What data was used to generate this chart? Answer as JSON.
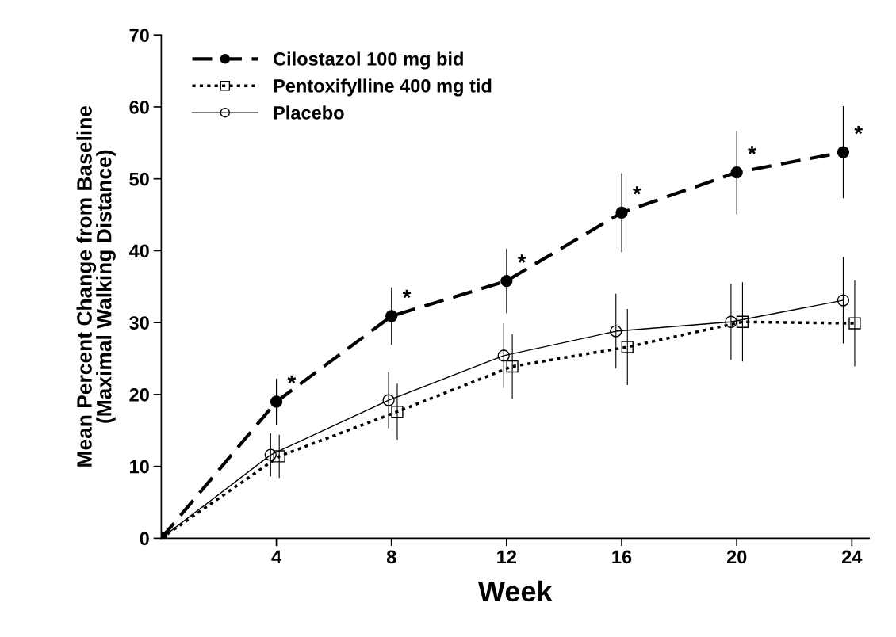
{
  "chart_data": {
    "type": "line",
    "xlabel": "Week",
    "ylabel": "Mean Percent Change from Baseline\n(Maximal Walking Distance)",
    "xlim": [
      0,
      24.6
    ],
    "xticks": [
      4,
      8,
      12,
      16,
      20,
      24
    ],
    "ylim": [
      0,
      70
    ],
    "yticks": [
      0,
      10,
      20,
      30,
      40,
      50,
      60,
      70
    ],
    "grid": false,
    "legend": "top left",
    "series": [
      {
        "name": "Cilostazol 100 mg bid",
        "color": "#000000",
        "marker": "circle",
        "line_style": "dashed",
        "x": [
          0,
          4,
          8,
          12,
          16,
          20,
          23.7
        ],
        "values": [
          0,
          19.0,
          30.9,
          35.8,
          45.3,
          50.9,
          53.7
        ],
        "errors": [
          null,
          3.2,
          4.0,
          4.5,
          5.5,
          5.8,
          6.4
        ]
      },
      {
        "name": "Pentoxifylline 400 mg tid",
        "color": "#000000",
        "marker": "square",
        "line_style": "dotted",
        "x": [
          0,
          4.1,
          8.2,
          12.2,
          16.2,
          20.2,
          24.1
        ],
        "values": [
          0,
          11.4,
          17.6,
          23.9,
          26.6,
          30.1,
          29.9
        ],
        "errors": [
          null,
          3.0,
          3.9,
          4.5,
          5.3,
          5.5,
          6.0
        ]
      },
      {
        "name": "Placebo",
        "color": "#000000",
        "marker": "circle",
        "line_style": "solid",
        "x": [
          0,
          3.8,
          7.9,
          11.9,
          15.8,
          19.8,
          23.7
        ],
        "values": [
          0,
          11.6,
          19.2,
          25.4,
          28.8,
          30.1,
          33.1
        ],
        "errors": [
          null,
          3.0,
          3.9,
          4.5,
          5.2,
          5.3,
          6.0
        ]
      }
    ],
    "annotations": [
      {
        "text": "*",
        "x": 4,
        "y": 19.0
      },
      {
        "text": "*",
        "x": 8,
        "y": 30.9
      },
      {
        "text": "*",
        "x": 12,
        "y": 35.8
      },
      {
        "text": "*",
        "x": 16,
        "y": 45.3
      },
      {
        "text": "*",
        "x": 20,
        "y": 50.9
      },
      {
        "text": "*",
        "x": 23.7,
        "y": 53.7
      }
    ]
  }
}
